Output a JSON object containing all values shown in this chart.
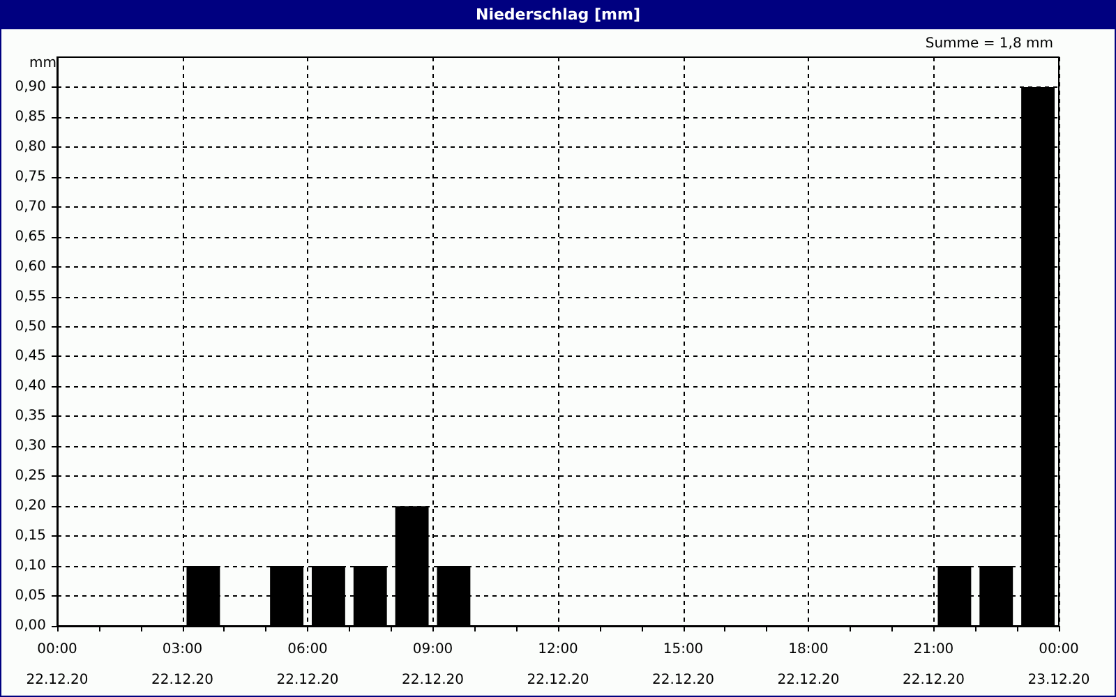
{
  "chart_data": {
    "type": "bar",
    "title": "Niederschlag [mm]",
    "ylabel": "mm",
    "annotations": [
      "Summe = 1,8 mm"
    ],
    "x": [
      "--12-22T03:30",
      "--12-22T05:30",
      "--12-22T06:30",
      "--12-22T07:30",
      "--12-22T08:30",
      "--12-22T09:30",
      "--12-22T21:30",
      "--12-22T22:30",
      "--12-22T23:30"
    ],
    "values": [
      0.1,
      0.1,
      0.1,
      0.1,
      0.2,
      0.1,
      0.1,
      0.1,
      0.9
    ],
    "color": "#000000",
    "xlim": [
      "--12-22T00:00",
      "--12-23T00:00"
    ],
    "xticks": [
      {
        "value": "--12-22T00:00",
        "label": "00:00\n22.12.20"
      },
      {
        "value": "--12-22T01:00",
        "label": null
      },
      {
        "value": "--12-22T02:00",
        "label": null
      },
      {
        "value": "--12-22T03:00",
        "label": "03:00\n22.12.20"
      },
      {
        "value": "--12-22T04:00",
        "label": null
      },
      {
        "value": "--12-22T05:00",
        "label": null
      },
      {
        "value": "--12-22T06:00",
        "label": "06:00\n22.12.20"
      },
      {
        "value": "--12-22T07:00",
        "label": null
      },
      {
        "value": "--12-22T08:00",
        "label": null
      },
      {
        "value": "--12-22T09:00",
        "label": "09:00\n22.12.20"
      },
      {
        "value": "--12-22T10:00",
        "label": null
      },
      {
        "value": "--12-22T11:00",
        "label": null
      },
      {
        "value": "--12-22T12:00",
        "label": "12:00\n22.12.20"
      },
      {
        "value": "--12-22T13:00",
        "label": null
      },
      {
        "value": "--12-22T14:00",
        "label": null
      },
      {
        "value": "--12-22T15:00",
        "label": "15:00\n22.12.20"
      },
      {
        "value": "--12-22T16:00",
        "label": null
      },
      {
        "value": "--12-22T17:00",
        "label": null
      },
      {
        "value": "--12-22T18:00",
        "label": "18:00\n22.12.20"
      },
      {
        "value": "--12-22T19:00",
        "label": null
      },
      {
        "value": "--12-22T20:00",
        "label": null
      },
      {
        "value": "--12-22T21:00",
        "label": "21:00\n22.12.20"
      },
      {
        "value": "--12-22T22:00",
        "label": null
      },
      {
        "value": "--12-22T23:00",
        "label": null
      },
      {
        "value": "--12-23T00:00",
        "label": "00:00\n23.12.20"
      }
    ],
    "ylim": [
      0,
      0.95
    ],
    "yticks": [
      {
        "value": 0,
        "label": "0,00"
      },
      {
        "value": 0.05,
        "label": "0,05"
      },
      {
        "value": 0.1,
        "label": "0,10"
      },
      {
        "value": 0.15,
        "label": "0,15"
      },
      {
        "value": 0.2,
        "label": "0,20"
      },
      {
        "value": 0.25,
        "label": "0,25"
      },
      {
        "value": 0.3,
        "label": "0,30"
      },
      {
        "value": 0.35,
        "label": "0,35"
      },
      {
        "value": 0.4,
        "label": "0,40"
      },
      {
        "value": 0.45,
        "label": "0,45"
      },
      {
        "value": 0.5,
        "label": "0,50"
      },
      {
        "value": 0.55,
        "label": "0,55"
      },
      {
        "value": 0.6,
        "label": "0,60"
      },
      {
        "value": 0.65,
        "label": "0,65"
      },
      {
        "value": 0.7,
        "label": "0,70"
      },
      {
        "value": 0.75,
        "label": "0,75"
      },
      {
        "value": 0.8,
        "label": "0,80"
      },
      {
        "value": 0.85,
        "label": "0,85"
      },
      {
        "value": 0.9,
        "label": "0,90"
      }
    ],
    "grid": true
  }
}
